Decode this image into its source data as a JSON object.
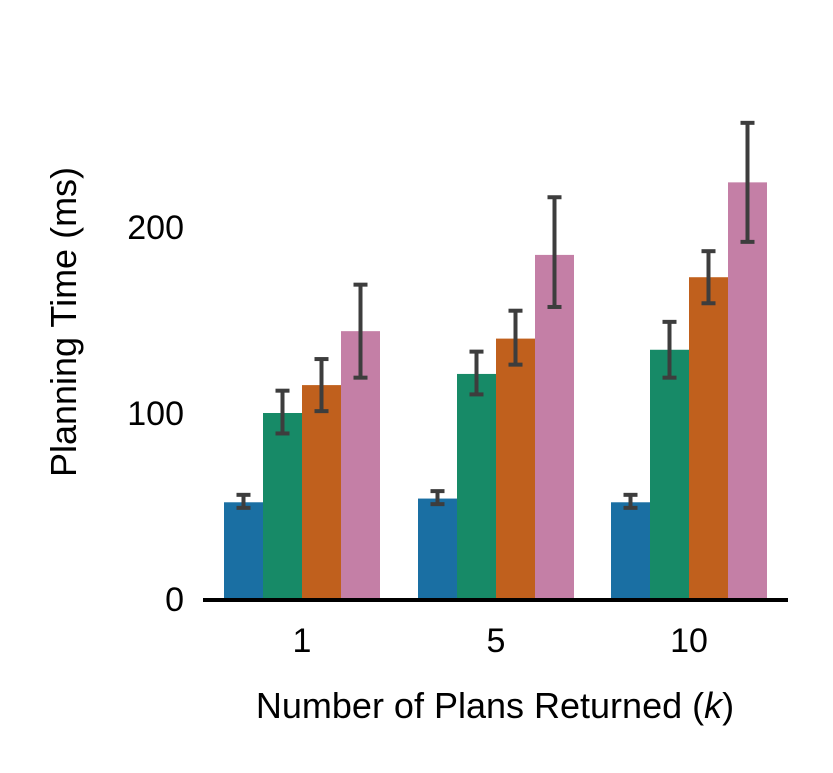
{
  "chart_data": {
    "type": "bar",
    "xlabel": "Number of Plans Returned (",
    "xlabel_var": "k",
    "xlabel_end": ")",
    "ylabel": "Planning Time (ms)",
    "categories": [
      "1",
      "5",
      "10"
    ],
    "ylim": [
      0,
      255
    ],
    "yticks": [
      0,
      100,
      200
    ],
    "ytick_labels": [
      "0",
      "100",
      "200"
    ],
    "grid": false,
    "legend": "none",
    "series": [
      {
        "color": "#1a6fa3",
        "values": [
          52,
          54,
          52
        ],
        "err_low": [
          49,
          51,
          49
        ],
        "err_high": [
          56,
          58,
          56
        ]
      },
      {
        "color": "#178a67",
        "values": [
          100,
          121,
          134
        ],
        "err_low": [
          89,
          110,
          119
        ],
        "err_high": [
          112,
          133,
          149
        ]
      },
      {
        "color": "#c0601d",
        "values": [
          115,
          140,
          173
        ],
        "err_low": [
          101,
          126,
          159
        ],
        "err_high": [
          129,
          155,
          187
        ]
      },
      {
        "color": "#c47fa6",
        "values": [
          144,
          185,
          224
        ],
        "err_low": [
          119,
          157,
          192
        ],
        "err_high": [
          169,
          216,
          256
        ]
      }
    ]
  }
}
